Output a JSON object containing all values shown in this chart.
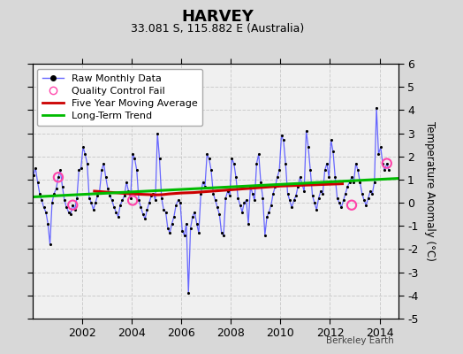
{
  "title": "HARVEY",
  "subtitle": "33.081 S, 115.882 E (Australia)",
  "ylabel": "Temperature Anomaly (°C)",
  "credit": "Berkeley Earth",
  "ylim": [
    -5,
    6
  ],
  "yticks": [
    -5,
    -4,
    -3,
    -2,
    -1,
    0,
    1,
    2,
    3,
    4,
    5,
    6
  ],
  "xlim_start": 2000.0,
  "xlim_end": 2014.75,
  "xticks": [
    2002,
    2004,
    2006,
    2008,
    2010,
    2012,
    2014
  ],
  "bg_color": "#d8d8d8",
  "plot_bg_color": "#f0f0f0",
  "raw_color": "#6666ff",
  "raw_dot_color": "#000000",
  "ma_color": "#cc0000",
  "trend_color": "#00bb00",
  "qc_fail_color": "#ff44aa",
  "raw_data": [
    [
      2000.042,
      1.2
    ],
    [
      2000.125,
      1.5
    ],
    [
      2000.208,
      0.9
    ],
    [
      2000.292,
      0.4
    ],
    [
      2000.375,
      0.1
    ],
    [
      2000.458,
      -0.2
    ],
    [
      2000.542,
      -0.4
    ],
    [
      2000.625,
      -0.9
    ],
    [
      2000.708,
      -1.8
    ],
    [
      2000.792,
      0.0
    ],
    [
      2000.875,
      0.4
    ],
    [
      2000.958,
      0.6
    ],
    [
      2001.042,
      1.1
    ],
    [
      2001.125,
      1.4
    ],
    [
      2001.208,
      0.7
    ],
    [
      2001.292,
      0.1
    ],
    [
      2001.375,
      -0.2
    ],
    [
      2001.458,
      -0.4
    ],
    [
      2001.542,
      -0.5
    ],
    [
      2001.625,
      -0.1
    ],
    [
      2001.708,
      -0.3
    ],
    [
      2001.792,
      0.2
    ],
    [
      2001.875,
      1.4
    ],
    [
      2001.958,
      1.5
    ],
    [
      2002.042,
      2.4
    ],
    [
      2002.125,
      2.1
    ],
    [
      2002.208,
      1.7
    ],
    [
      2002.292,
      0.2
    ],
    [
      2002.375,
      0.0
    ],
    [
      2002.458,
      -0.3
    ],
    [
      2002.542,
      0.0
    ],
    [
      2002.625,
      0.3
    ],
    [
      2002.708,
      0.5
    ],
    [
      2002.792,
      1.4
    ],
    [
      2002.875,
      1.7
    ],
    [
      2002.958,
      1.1
    ],
    [
      2003.042,
      0.6
    ],
    [
      2003.125,
      0.3
    ],
    [
      2003.208,
      0.1
    ],
    [
      2003.292,
      -0.2
    ],
    [
      2003.375,
      -0.4
    ],
    [
      2003.458,
      -0.6
    ],
    [
      2003.542,
      -0.1
    ],
    [
      2003.625,
      0.1
    ],
    [
      2003.708,
      0.3
    ],
    [
      2003.792,
      0.9
    ],
    [
      2003.875,
      0.5
    ],
    [
      2003.958,
      0.2
    ],
    [
      2004.042,
      2.1
    ],
    [
      2004.125,
      1.9
    ],
    [
      2004.208,
      1.4
    ],
    [
      2004.292,
      0.1
    ],
    [
      2004.375,
      -0.2
    ],
    [
      2004.458,
      -0.5
    ],
    [
      2004.542,
      -0.7
    ],
    [
      2004.625,
      -0.3
    ],
    [
      2004.708,
      0.0
    ],
    [
      2004.792,
      0.3
    ],
    [
      2004.875,
      0.4
    ],
    [
      2004.958,
      0.1
    ],
    [
      2005.042,
      3.0
    ],
    [
      2005.125,
      1.9
    ],
    [
      2005.208,
      0.2
    ],
    [
      2005.292,
      -0.3
    ],
    [
      2005.375,
      -0.4
    ],
    [
      2005.458,
      -1.1
    ],
    [
      2005.542,
      -1.3
    ],
    [
      2005.625,
      -0.9
    ],
    [
      2005.708,
      -0.6
    ],
    [
      2005.792,
      -0.1
    ],
    [
      2005.875,
      0.1
    ],
    [
      2005.958,
      0.0
    ],
    [
      2006.042,
      -1.2
    ],
    [
      2006.125,
      -1.4
    ],
    [
      2006.208,
      -0.9
    ],
    [
      2006.292,
      -3.9
    ],
    [
      2006.375,
      -1.1
    ],
    [
      2006.458,
      -0.6
    ],
    [
      2006.542,
      -0.4
    ],
    [
      2006.625,
      -0.9
    ],
    [
      2006.708,
      -1.3
    ],
    [
      2006.792,
      0.4
    ],
    [
      2006.875,
      0.9
    ],
    [
      2006.958,
      0.7
    ],
    [
      2007.042,
      2.1
    ],
    [
      2007.125,
      1.9
    ],
    [
      2007.208,
      1.4
    ],
    [
      2007.292,
      0.4
    ],
    [
      2007.375,
      0.1
    ],
    [
      2007.458,
      -0.2
    ],
    [
      2007.542,
      -0.5
    ],
    [
      2007.625,
      -1.3
    ],
    [
      2007.708,
      -1.4
    ],
    [
      2007.792,
      0.2
    ],
    [
      2007.875,
      0.5
    ],
    [
      2007.958,
      0.3
    ],
    [
      2008.042,
      1.9
    ],
    [
      2008.125,
      1.7
    ],
    [
      2008.208,
      1.1
    ],
    [
      2008.292,
      0.2
    ],
    [
      2008.375,
      -0.1
    ],
    [
      2008.458,
      -0.4
    ],
    [
      2008.542,
      0.0
    ],
    [
      2008.625,
      0.1
    ],
    [
      2008.708,
      -0.9
    ],
    [
      2008.792,
      0.7
    ],
    [
      2008.875,
      0.4
    ],
    [
      2008.958,
      0.1
    ],
    [
      2009.042,
      1.7
    ],
    [
      2009.125,
      2.1
    ],
    [
      2009.208,
      0.9
    ],
    [
      2009.292,
      0.2
    ],
    [
      2009.375,
      -1.4
    ],
    [
      2009.458,
      -0.6
    ],
    [
      2009.542,
      -0.4
    ],
    [
      2009.625,
      -0.1
    ],
    [
      2009.708,
      0.4
    ],
    [
      2009.792,
      0.7
    ],
    [
      2009.875,
      1.1
    ],
    [
      2009.958,
      1.4
    ],
    [
      2010.042,
      2.9
    ],
    [
      2010.125,
      2.7
    ],
    [
      2010.208,
      1.7
    ],
    [
      2010.292,
      0.4
    ],
    [
      2010.375,
      0.1
    ],
    [
      2010.458,
      -0.2
    ],
    [
      2010.542,
      0.1
    ],
    [
      2010.625,
      0.3
    ],
    [
      2010.708,
      0.7
    ],
    [
      2010.792,
      1.1
    ],
    [
      2010.875,
      0.8
    ],
    [
      2010.958,
      0.5
    ],
    [
      2011.042,
      3.1
    ],
    [
      2011.125,
      2.4
    ],
    [
      2011.208,
      1.4
    ],
    [
      2011.292,
      0.3
    ],
    [
      2011.375,
      0.0
    ],
    [
      2011.458,
      -0.3
    ],
    [
      2011.542,
      0.2
    ],
    [
      2011.625,
      0.5
    ],
    [
      2011.708,
      0.4
    ],
    [
      2011.792,
      1.4
    ],
    [
      2011.875,
      1.7
    ],
    [
      2011.958,
      1.1
    ],
    [
      2012.042,
      2.7
    ],
    [
      2012.125,
      2.2
    ],
    [
      2012.208,
      1.1
    ],
    [
      2012.292,
      0.2
    ],
    [
      2012.375,
      0.0
    ],
    [
      2012.458,
      -0.2
    ],
    [
      2012.542,
      0.1
    ],
    [
      2012.625,
      0.4
    ],
    [
      2012.708,
      0.7
    ],
    [
      2012.792,
      0.9
    ],
    [
      2012.875,
      1.1
    ],
    [
      2012.958,
      0.9
    ],
    [
      2013.042,
      1.7
    ],
    [
      2013.125,
      1.4
    ],
    [
      2013.208,
      0.9
    ],
    [
      2013.292,
      0.4
    ],
    [
      2013.375,
      0.1
    ],
    [
      2013.458,
      -0.1
    ],
    [
      2013.542,
      0.2
    ],
    [
      2013.625,
      0.5
    ],
    [
      2013.708,
      0.4
    ],
    [
      2013.792,
      0.9
    ],
    [
      2013.875,
      4.1
    ],
    [
      2013.958,
      2.1
    ],
    [
      2014.042,
      2.4
    ],
    [
      2014.125,
      1.7
    ],
    [
      2014.208,
      1.4
    ],
    [
      2014.292,
      1.7
    ],
    [
      2014.375,
      1.4
    ]
  ],
  "qc_fail_points": [
    [
      2001.042,
      1.1
    ],
    [
      2001.625,
      -0.1
    ],
    [
      2004.042,
      0.1
    ],
    [
      2012.875,
      -0.1
    ],
    [
      2014.292,
      1.7
    ]
  ],
  "moving_avg": [
    [
      2002.5,
      0.5
    ],
    [
      2002.75,
      0.48
    ],
    [
      2003.0,
      0.46
    ],
    [
      2003.25,
      0.44
    ],
    [
      2003.5,
      0.42
    ],
    [
      2003.75,
      0.4
    ],
    [
      2004.0,
      0.38
    ],
    [
      2004.25,
      0.37
    ],
    [
      2004.5,
      0.36
    ],
    [
      2004.75,
      0.35
    ],
    [
      2005.0,
      0.34
    ],
    [
      2005.25,
      0.35
    ],
    [
      2005.5,
      0.38
    ],
    [
      2005.75,
      0.4
    ],
    [
      2006.0,
      0.42
    ],
    [
      2006.25,
      0.43
    ],
    [
      2006.5,
      0.44
    ],
    [
      2006.75,
      0.46
    ],
    [
      2007.0,
      0.48
    ],
    [
      2007.25,
      0.5
    ],
    [
      2007.5,
      0.52
    ],
    [
      2007.75,
      0.54
    ],
    [
      2008.0,
      0.56
    ],
    [
      2008.25,
      0.58
    ],
    [
      2008.5,
      0.6
    ],
    [
      2008.75,
      0.62
    ],
    [
      2009.0,
      0.64
    ],
    [
      2009.25,
      0.66
    ],
    [
      2009.5,
      0.68
    ],
    [
      2009.75,
      0.7
    ],
    [
      2010.0,
      0.72
    ],
    [
      2010.25,
      0.73
    ],
    [
      2010.5,
      0.74
    ],
    [
      2010.75,
      0.75
    ],
    [
      2011.0,
      0.76
    ],
    [
      2011.25,
      0.77
    ],
    [
      2011.5,
      0.78
    ],
    [
      2011.75,
      0.79
    ],
    [
      2012.0,
      0.8
    ],
    [
      2012.25,
      0.81
    ],
    [
      2012.5,
      0.82
    ]
  ],
  "trend_line": [
    [
      2000.0,
      0.25
    ],
    [
      2014.75,
      1.05
    ]
  ],
  "legend_labels": [
    "Raw Monthly Data",
    "Quality Control Fail",
    "Five Year Moving Average",
    "Long-Term Trend"
  ]
}
